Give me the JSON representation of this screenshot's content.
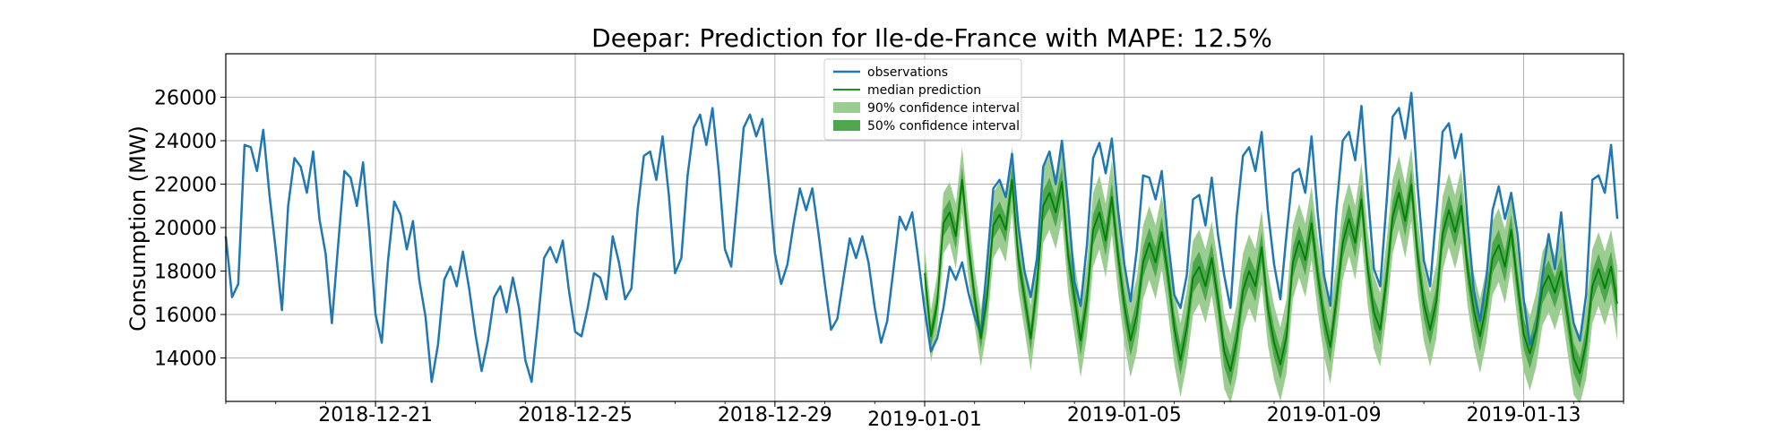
{
  "chart_data": {
    "type": "line",
    "title": "Deepar: Prediction for Ile-de-France with MAPE: 12.5%",
    "xlabel": "",
    "ylabel": "Consumption (MW)",
    "ylim": [
      12000,
      28000
    ],
    "xlim": [
      "2018-12-18T00:00",
      "2019-01-15T00:00"
    ],
    "yticks": [
      14000,
      16000,
      18000,
      20000,
      22000,
      24000,
      26000
    ],
    "xticks": [
      "2018-12-21",
      "2018-12-25",
      "2018-12-29",
      "2019-01-01",
      "2019-01-05",
      "2019-01-09",
      "2019-01-13"
    ],
    "grid": true,
    "legend_position": "top-center",
    "legend": [
      "observations",
      "median prediction",
      "90% confidence interval",
      "50% confidence interval"
    ],
    "colors": {
      "observations": "#1f77b4",
      "median": "#008000",
      "ci90": "#9acd8f",
      "ci50": "#4ea64e"
    },
    "observations": {
      "step_hours": 3,
      "start": "2018-12-18T00:00",
      "values": [
        19600,
        16800,
        17400,
        23800,
        23700,
        22600,
        24500,
        21500,
        19000,
        16200,
        21000,
        23200,
        22800,
        21600,
        23500,
        20400,
        18800,
        15600,
        19200,
        22600,
        22300,
        21000,
        23000,
        19800,
        16000,
        14700,
        18500,
        21200,
        20600,
        19000,
        20300,
        17600,
        15900,
        12900,
        14600,
        17600,
        18200,
        17300,
        18900,
        17200,
        15100,
        13400,
        14800,
        16800,
        17300,
        16100,
        17700,
        16300,
        13900,
        12900,
        15600,
        18600,
        19100,
        18400,
        19400,
        17100,
        15200,
        15000,
        16300,
        17900,
        17700,
        16700,
        19600,
        18400,
        16700,
        17200,
        20800,
        23300,
        23500,
        22200,
        24200,
        21500,
        17900,
        18600,
        22400,
        24600,
        25200,
        23800,
        25500,
        22600,
        19000,
        18200,
        21400,
        24600,
        25200,
        24200,
        25000,
        22100,
        18800,
        17400,
        18300,
        20200,
        21800,
        20800,
        21800,
        19700,
        17400,
        15300,
        15800,
        17700,
        19500,
        18600,
        19600,
        18400,
        16300,
        14700,
        15700,
        18100,
        20500,
        19900,
        20700,
        18500,
        16200,
        14300,
        14900,
        16300,
        18200,
        17600,
        18400,
        17000,
        15900,
        15100,
        18300,
        21800,
        22200,
        21400,
        23400,
        20100,
        18000,
        16800,
        18600,
        22800,
        23500,
        22000,
        24000,
        21000,
        17500,
        16400,
        19200,
        23200,
        23900,
        22500,
        24100,
        20800,
        18300,
        16600,
        19000,
        22400,
        22300,
        21300,
        22600,
        19400,
        16900,
        16300,
        17800,
        21300,
        21500,
        20100,
        22300,
        19700,
        17800,
        16300,
        20500,
        23300,
        23700,
        22600,
        24400,
        20800,
        18300,
        16700,
        19700,
        22500,
        22700,
        21600,
        24200,
        20600,
        17800,
        16400,
        20900,
        24000,
        24400,
        23100,
        25600,
        21600,
        18100,
        17300,
        21100,
        25100,
        25500,
        24100,
        26200,
        21900,
        18500,
        17300,
        20700,
        24400,
        24800,
        23200,
        24300,
        20300,
        17100,
        15700,
        17600,
        20800,
        21900,
        20400,
        21600,
        19700,
        16700,
        14600,
        15300,
        17800,
        19700,
        18100,
        20700,
        17500,
        15600,
        14800,
        16900,
        22200,
        22400,
        21600,
        23800,
        20400
      ]
    },
    "prediction": {
      "step_hours": 3,
      "start": "2019-01-01T00:00",
      "median": [
        17900,
        15000,
        16500,
        20200,
        20700,
        19600,
        22200,
        19200,
        16800,
        14900,
        16800,
        20100,
        20600,
        19900,
        22200,
        18600,
        16800,
        14900,
        17400,
        21000,
        21600,
        20700,
        22100,
        18700,
        16800,
        14800,
        16700,
        19900,
        20700,
        19400,
        21400,
        18700,
        16400,
        14800,
        16000,
        18400,
        19300,
        18400,
        19800,
        17800,
        15400,
        13900,
        15400,
        17700,
        18200,
        17300,
        18600,
        16700,
        14300,
        13400,
        14800,
        17100,
        18000,
        17300,
        19100,
        16300,
        14700,
        13700,
        15000,
        18400,
        19400,
        18500,
        20200,
        17800,
        15800,
        14500,
        16700,
        19300,
        20400,
        19300,
        21300,
        18100,
        16100,
        15300,
        17600,
        20500,
        21600,
        20300,
        22000,
        18700,
        16500,
        15300,
        16600,
        19700,
        20800,
        19800,
        21000,
        18100,
        16200,
        15000,
        16400,
        18600,
        19200,
        18200,
        19900,
        17400,
        15100,
        14200,
        15300,
        17200,
        17800,
        17000,
        18000,
        16000,
        14000,
        13300,
        14700,
        17300,
        18100,
        17200,
        18200,
        16500
      ],
      "ci50_low": [
        17400,
        14500,
        16000,
        19600,
        20100,
        19000,
        21600,
        18600,
        16300,
        14400,
        16200,
        19500,
        20000,
        19300,
        21600,
        18000,
        16200,
        14300,
        16700,
        20300,
        20900,
        20000,
        21400,
        18000,
        16100,
        14100,
        16000,
        19200,
        20000,
        18700,
        20700,
        18000,
        15700,
        14100,
        15300,
        17700,
        18600,
        17700,
        19100,
        17100,
        14700,
        13200,
        14700,
        17000,
        17500,
        16600,
        17900,
        16000,
        13600,
        12700,
        14100,
        16400,
        17300,
        16600,
        18400,
        15600,
        14000,
        13000,
        14300,
        17700,
        18700,
        17800,
        19500,
        17100,
        15100,
        13800,
        16000,
        18600,
        19700,
        18600,
        20600,
        17400,
        15400,
        14600,
        16900,
        19800,
        20900,
        19600,
        21300,
        18000,
        15800,
        14600,
        15900,
        19000,
        20100,
        19100,
        20300,
        17400,
        15500,
        14300,
        15700,
        17900,
        18500,
        17500,
        19200,
        16700,
        14400,
        13500,
        14600,
        16500,
        17100,
        16300,
        17300,
        15300,
        13300,
        12600,
        14000,
        16600,
        17400,
        16500,
        17500,
        15800
      ],
      "ci50_high": [
        18400,
        15500,
        17000,
        20800,
        21300,
        20200,
        22800,
        19800,
        17300,
        15400,
        17400,
        20700,
        21200,
        20500,
        22800,
        19200,
        17400,
        15500,
        18100,
        21700,
        22300,
        21400,
        22800,
        19400,
        17500,
        15500,
        17400,
        20600,
        21400,
        20100,
        22100,
        19400,
        17100,
        15500,
        16700,
        19100,
        20000,
        19100,
        20500,
        18500,
        16100,
        14600,
        16100,
        18400,
        18900,
        18000,
        19300,
        17400,
        15000,
        14100,
        15500,
        17800,
        18700,
        18000,
        19800,
        17000,
        15400,
        14400,
        15700,
        19100,
        20100,
        19200,
        20900,
        18500,
        16500,
        15200,
        17400,
        20000,
        21100,
        20000,
        22000,
        18800,
        16800,
        16000,
        18300,
        21200,
        22300,
        21000,
        22700,
        19400,
        17200,
        16000,
        17300,
        20400,
        21500,
        20500,
        21700,
        18800,
        16900,
        15700,
        17100,
        19300,
        19900,
        18900,
        20600,
        18100,
        15800,
        14900,
        16000,
        17900,
        18500,
        17700,
        18700,
        16700,
        14700,
        14000,
        15400,
        18000,
        18800,
        17900,
        18900,
        17200
      ],
      "ci90_low": [
        16700,
        13800,
        15200,
        18800,
        19300,
        18100,
        20700,
        17700,
        15500,
        13600,
        15300,
        18600,
        19100,
        18400,
        20700,
        17100,
        15300,
        13400,
        15700,
        19300,
        19900,
        19000,
        20400,
        17000,
        15100,
        13100,
        15000,
        18200,
        19000,
        17700,
        19700,
        17000,
        14700,
        13100,
        14300,
        16700,
        17600,
        16700,
        18100,
        16100,
        13700,
        12200,
        13700,
        16000,
        16500,
        15600,
        16900,
        15000,
        12600,
        11900,
        13100,
        15400,
        16300,
        15600,
        17400,
        14600,
        13000,
        12000,
        13300,
        16700,
        17700,
        16800,
        18500,
        16100,
        14100,
        12800,
        15000,
        17600,
        18700,
        17600,
        19600,
        16400,
        14400,
        13600,
        15900,
        18800,
        19900,
        18600,
        20300,
        17000,
        14800,
        13600,
        14900,
        18000,
        19100,
        18100,
        19300,
        16400,
        14500,
        13300,
        14700,
        16900,
        17500,
        16500,
        18200,
        15700,
        13400,
        12500,
        13600,
        15500,
        16100,
        15300,
        16300,
        14300,
        12300,
        11900,
        13000,
        15600,
        16400,
        15500,
        16500,
        14800
      ],
      "ci90_high": [
        19100,
        16200,
        17800,
        21600,
        22100,
        21100,
        23700,
        20700,
        18100,
        16200,
        18300,
        21600,
        22100,
        21400,
        23700,
        20100,
        18300,
        16400,
        19100,
        22700,
        23300,
        22400,
        23800,
        20400,
        18500,
        16500,
        18400,
        21600,
        22400,
        21100,
        23100,
        20400,
        18100,
        16500,
        17700,
        20100,
        21000,
        20100,
        21500,
        19500,
        17100,
        15600,
        17100,
        19400,
        19900,
        19000,
        20300,
        18400,
        16000,
        15100,
        16500,
        18800,
        19700,
        19000,
        20800,
        18000,
        16400,
        15400,
        16700,
        20100,
        21100,
        20200,
        21900,
        19500,
        17500,
        16200,
        18400,
        21000,
        22100,
        21000,
        23000,
        19800,
        17800,
        17000,
        19300,
        22200,
        23300,
        22000,
        23700,
        20400,
        18200,
        17000,
        18300,
        21400,
        22500,
        21500,
        22700,
        19800,
        17900,
        16700,
        18100,
        20300,
        20900,
        19900,
        21600,
        19100,
        16800,
        15900,
        17000,
        18900,
        19500,
        18700,
        19700,
        17700,
        15700,
        15000,
        16400,
        19000,
        19800,
        18900,
        19900,
        18200
      ]
    }
  }
}
